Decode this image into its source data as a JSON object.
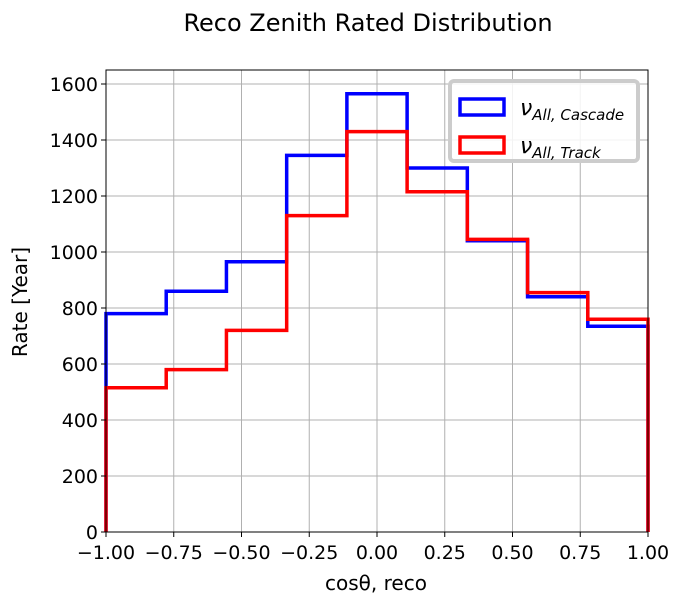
{
  "chart_data": {
    "type": "histogram-step",
    "title": "Reco Zenith Rated Distribution",
    "xlabel": "cosθ, reco",
    "ylabel": "Rate [Year]",
    "xlim": [
      -1.0,
      1.0
    ],
    "ylim": [
      0,
      1650
    ],
    "xticks": [
      -1.0,
      -0.75,
      -0.5,
      -0.25,
      0.0,
      0.25,
      0.5,
      0.75,
      1.0
    ],
    "xtick_labels": [
      "−1.00",
      "−0.75",
      "−0.50",
      "−0.25",
      "0.00",
      "0.25",
      "0.50",
      "0.75",
      "1.00"
    ],
    "yticks": [
      0,
      200,
      400,
      600,
      800,
      1000,
      1200,
      1400,
      1600
    ],
    "ytick_labels": [
      "0",
      "200",
      "400",
      "600",
      "800",
      "1000",
      "1200",
      "1400",
      "1600"
    ],
    "grid": true,
    "legend_position": "top-right",
    "bin_edges": [
      -1.0,
      -0.7778,
      -0.5556,
      -0.3333,
      -0.1111,
      0.1111,
      0.3333,
      0.5556,
      0.7778,
      1.0
    ],
    "series": [
      {
        "name": "ν",
        "subscript": "All, Cascade",
        "color": "#0000ff",
        "values": [
          780,
          860,
          965,
          1345,
          1565,
          1300,
          1040,
          840,
          735
        ]
      },
      {
        "name": "ν",
        "subscript": "All, Track",
        "color": "#ff0000",
        "values": [
          515,
          580,
          720,
          1130,
          1430,
          1215,
          1045,
          855,
          760
        ]
      }
    ]
  }
}
